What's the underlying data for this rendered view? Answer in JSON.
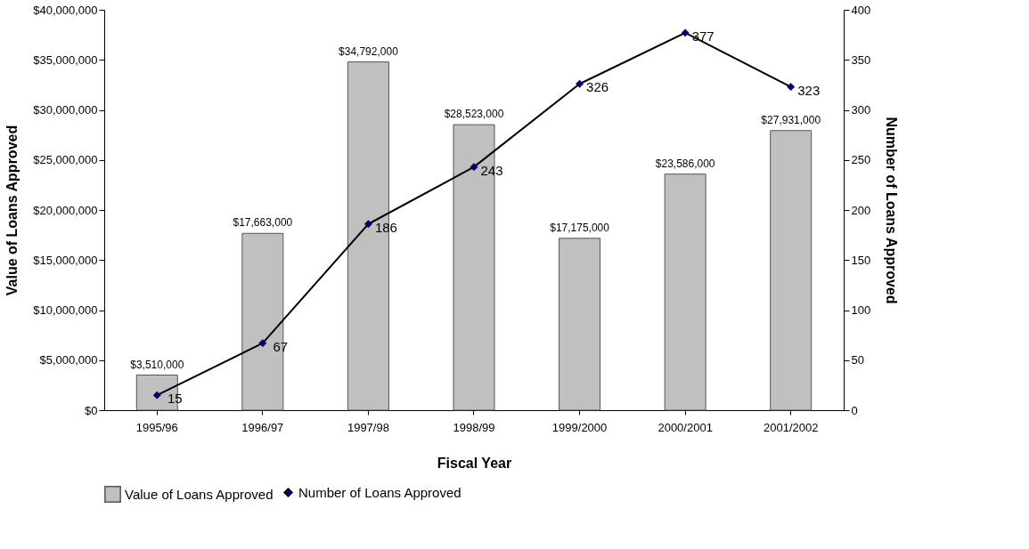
{
  "chart_data": {
    "type": "bar",
    "xlabel": "Fiscal Year",
    "ylabel": "Value of Loans Approved",
    "y2label": "Number of Loans Approved",
    "categories": [
      "1995/96",
      "1996/97",
      "1997/98",
      "1998/99",
      "1999/2000",
      "2000/2001",
      "2001/2002"
    ],
    "series": [
      {
        "name": "Value of Loans Approved",
        "color": "#c0c0c0",
        "values": [
          3510000,
          17663000,
          34792000,
          28523000,
          17175000,
          23586000,
          27931000
        ],
        "value_labels": [
          "$3,510,000",
          "$17,663,000",
          "$34,792,000",
          "$28,523,000",
          "$17,175,000",
          "$23,586,000",
          "$27,931,000"
        ]
      },
      {
        "name": "Number of Loans Approved",
        "type": "line",
        "axis": "y2",
        "color": "#000080",
        "marker": "diamond",
        "values": [
          15,
          67,
          186,
          243,
          326,
          377,
          323
        ],
        "value_labels": [
          "15",
          "67",
          "186",
          "243",
          "326",
          "377",
          "323"
        ]
      }
    ],
    "ylim": [
      0,
      40000000
    ],
    "yticks": [
      {
        "value": 0,
        "label": "$0"
      },
      {
        "value": 5000000,
        "label": "$5,000,000"
      },
      {
        "value": 10000000,
        "label": "$10,000,000"
      },
      {
        "value": 15000000,
        "label": "$15,000,000"
      },
      {
        "value": 20000000,
        "label": "$20,000,000"
      },
      {
        "value": 25000000,
        "label": "$25,000,000"
      },
      {
        "value": 30000000,
        "label": "$30,000,000"
      },
      {
        "value": 35000000,
        "label": "$35,000,000"
      },
      {
        "value": 40000000,
        "label": "$40,000,000"
      }
    ],
    "y2lim": [
      0,
      400
    ],
    "y2ticks": [
      0,
      50,
      100,
      150,
      200,
      250,
      300,
      350,
      400
    ],
    "grid": false,
    "legend": "bottom"
  }
}
